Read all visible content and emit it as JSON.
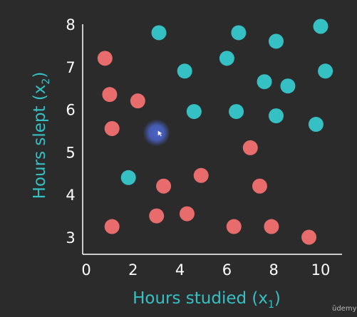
{
  "chart_data": {
    "type": "scatter",
    "xlabel": "Hours studied (x",
    "xlabel_sub": "1",
    "xlabel_close": ")",
    "ylabel": "Hours slept (x",
    "ylabel_sub": "2",
    "ylabel_close": ")",
    "xlim": [
      0,
      10.5
    ],
    "ylim": [
      2.7,
      8.2
    ],
    "xticks": [
      "0",
      "2",
      "4",
      "6",
      "8",
      "10"
    ],
    "yticks": [
      "3",
      "4",
      "5",
      "6",
      "7",
      "8"
    ],
    "grid": false,
    "series": [
      {
        "color": "#e86c6c",
        "points": [
          [
            0.8,
            7.2
          ],
          [
            1.0,
            6.35
          ],
          [
            2.2,
            6.2
          ],
          [
            1.1,
            5.55
          ],
          [
            7.0,
            5.1
          ],
          [
            4.9,
            4.45
          ],
          [
            3.3,
            4.2
          ],
          [
            7.4,
            4.2
          ],
          [
            1.1,
            3.25
          ],
          [
            3.0,
            3.5
          ],
          [
            4.3,
            3.55
          ],
          [
            6.3,
            3.25
          ],
          [
            7.9,
            3.25
          ],
          [
            9.5,
            3.0
          ]
        ]
      },
      {
        "color": "#35c1c4",
        "points": [
          [
            3.1,
            7.8
          ],
          [
            6.5,
            7.8
          ],
          [
            8.1,
            7.6
          ],
          [
            10.0,
            7.95
          ],
          [
            6.0,
            7.2
          ],
          [
            4.2,
            6.9
          ],
          [
            10.2,
            6.9
          ],
          [
            7.6,
            6.65
          ],
          [
            8.6,
            6.55
          ],
          [
            4.6,
            5.95
          ],
          [
            6.4,
            5.95
          ],
          [
            8.1,
            5.85
          ],
          [
            9.8,
            5.65
          ],
          [
            1.8,
            4.4
          ]
        ]
      }
    ],
    "highlight": {
      "x": 3.0,
      "y": 5.45,
      "color": "#4a63c8"
    }
  },
  "watermark": "ūdemy"
}
